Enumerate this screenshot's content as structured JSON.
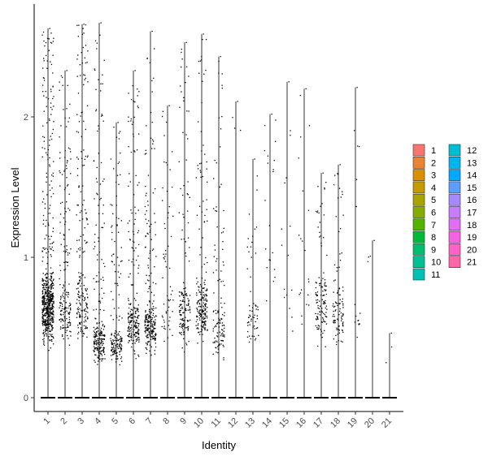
{
  "chart_data": {
    "type": "scatter",
    "subtype": "violin-jitter",
    "title": "",
    "xlabel": "Identity",
    "ylabel": "Expression Level",
    "ylim": [
      -0.1,
      2.7
    ],
    "yticks": [
      0,
      1,
      2
    ],
    "grid": false,
    "legend": "right",
    "categories": [
      "1",
      "2",
      "3",
      "4",
      "5",
      "6",
      "7",
      "8",
      "9",
      "10",
      "11",
      "12",
      "13",
      "14",
      "15",
      "16",
      "17",
      "18",
      "19",
      "20",
      "21"
    ],
    "colors": [
      "#F8766D",
      "#EB8335",
      "#DA8F00",
      "#C49A00",
      "#A9A400",
      "#86AC00",
      "#53B400",
      "#00BA38",
      "#00BE6D",
      "#00C094",
      "#00C0B6",
      "#00BDD4",
      "#00B5EE",
      "#00A9FF",
      "#5C9EFF",
      "#A58AFF",
      "#C77CFF",
      "#E26EF7",
      "#F563E3",
      "#FF61C9",
      "#FF66A8"
    ],
    "series": [
      {
        "name": "1",
        "max": 2.63,
        "n_pos": 650,
        "lo": 0.3,
        "hi": 1.0,
        "n_top": 130
      },
      {
        "name": "2",
        "max": 2.33,
        "n_pos": 190,
        "lo": 0.25,
        "hi": 0.9,
        "n_top": 80
      },
      {
        "name": "3",
        "max": 2.66,
        "n_pos": 210,
        "lo": 0.3,
        "hi": 1.0,
        "n_top": 90
      },
      {
        "name": "4",
        "max": 2.67,
        "n_pos": 250,
        "lo": 0.2,
        "hi": 0.6,
        "n_top": 80
      },
      {
        "name": "5",
        "max": 1.96,
        "n_pos": 170,
        "lo": 0.18,
        "hi": 0.55,
        "n_top": 60
      },
      {
        "name": "6",
        "max": 2.33,
        "n_pos": 230,
        "lo": 0.25,
        "hi": 0.8,
        "n_top": 70
      },
      {
        "name": "7",
        "max": 2.61,
        "n_pos": 250,
        "lo": 0.25,
        "hi": 0.75,
        "n_top": 70
      },
      {
        "name": "8",
        "max": 2.08,
        "n_pos": 60,
        "lo": 0.3,
        "hi": 0.9,
        "n_top": 30
      },
      {
        "name": "9",
        "max": 2.53,
        "n_pos": 150,
        "lo": 0.3,
        "hi": 0.9,
        "n_top": 40
      },
      {
        "name": "10",
        "max": 2.59,
        "n_pos": 210,
        "lo": 0.3,
        "hi": 0.95,
        "n_top": 45
      },
      {
        "name": "11",
        "max": 2.43,
        "n_pos": 120,
        "lo": 0.2,
        "hi": 0.8,
        "n_top": 40
      },
      {
        "name": "12",
        "max": 2.11,
        "n_pos": 3,
        "lo": 0.8,
        "hi": 1.9,
        "n_top": 3
      },
      {
        "name": "13",
        "max": 1.7,
        "n_pos": 60,
        "lo": 0.3,
        "hi": 0.8,
        "n_top": 15
      },
      {
        "name": "14",
        "max": 2.02,
        "n_pos": 20,
        "lo": 0.5,
        "hi": 1.4,
        "n_top": 10
      },
      {
        "name": "15",
        "max": 2.25,
        "n_pos": 15,
        "lo": 0.4,
        "hi": 1.0,
        "n_top": 8
      },
      {
        "name": "16",
        "max": 2.2,
        "n_pos": 20,
        "lo": 0.35,
        "hi": 1.0,
        "n_top": 10
      },
      {
        "name": "17",
        "max": 1.6,
        "n_pos": 120,
        "lo": 0.3,
        "hi": 1.0,
        "n_top": 20
      },
      {
        "name": "18",
        "max": 1.66,
        "n_pos": 100,
        "lo": 0.3,
        "hi": 0.9,
        "n_top": 20
      },
      {
        "name": "19",
        "max": 2.21,
        "n_pos": 15,
        "lo": 0.3,
        "hi": 0.9,
        "n_top": 5
      },
      {
        "name": "20",
        "max": 1.12,
        "n_pos": 3,
        "lo": 0.9,
        "hi": 1.1,
        "n_top": 0
      },
      {
        "name": "21",
        "max": 0.46,
        "n_pos": 2,
        "lo": 0.2,
        "hi": 0.46,
        "n_top": 0
      }
    ]
  }
}
